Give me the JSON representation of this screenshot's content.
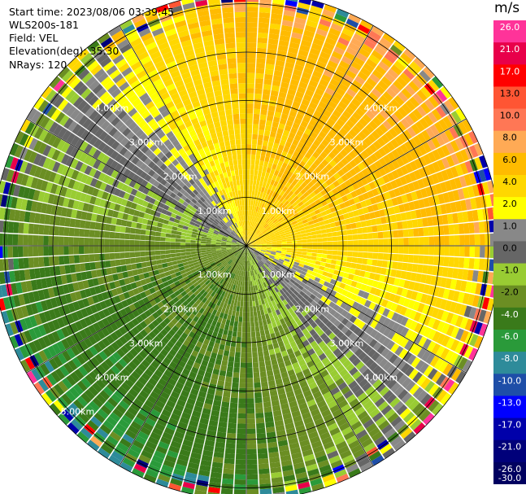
{
  "header": {
    "start_time": "Start time: 2023/08/06 03:39:45",
    "instrument": "WLS200s-181",
    "field": "Field: VEL",
    "elevation": "Elevation(deg): 35.30",
    "nrays": "NRays: 120"
  },
  "colorbar": {
    "unit": "m/s",
    "labels": [
      "26.0",
      "21.0",
      "17.0",
      "13.0",
      "10.0",
      "8.0",
      "6.0",
      "4.0",
      "2.0",
      "1.0",
      "0.0",
      "-1.0",
      "-2.0",
      "-4.0",
      "-6.0",
      "-8.0",
      "-10.0",
      "-13.0",
      "-17.0",
      "-21.0",
      "-26.0",
      "-30.0"
    ],
    "colors": [
      "#ff3399",
      "#e8004a",
      "#ff0000",
      "#ff5533",
      "#ff7755",
      "#ffaa55",
      "#ffbb00",
      "#ffd700",
      "#ffff00",
      "#888888",
      "#666666",
      "#99cc33",
      "#6b8e23",
      "#3a7a1a",
      "#2a9a3a",
      "#2e8b9a",
      "#1e4ea8",
      "#0000ff",
      "#0000aa",
      "#00007a",
      "#000060"
    ]
  },
  "chart_data": {
    "type": "ppi",
    "field": "VEL",
    "units": "m/s",
    "n_rays": 120,
    "range_rings_km": [
      1.0,
      2.0,
      3.0,
      4.0,
      5.0
    ],
    "ring_labels": [
      "1.00km",
      "2.00km",
      "3.00km",
      "4.00km",
      "5.00km"
    ],
    "max_range_km": 5.25,
    "spoke_interval_deg": 30,
    "color_scale": {
      "min": -30,
      "max": 26
    },
    "description_pattern": "positive velocities (yellow) toward north/east sector, negative (green) toward south/west, zero band (gray) between"
  }
}
